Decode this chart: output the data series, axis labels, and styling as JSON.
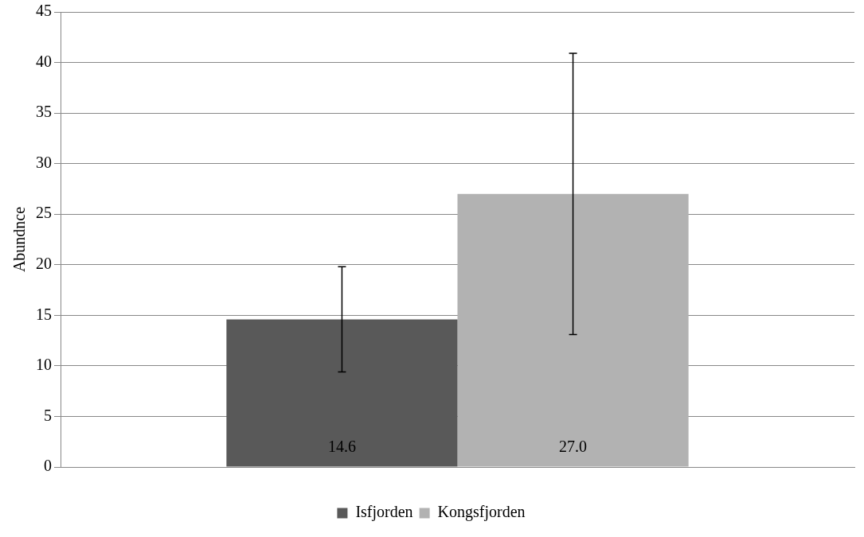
{
  "chart_data": {
    "type": "bar",
    "ylabel": "Abundnce",
    "categories": [
      null
    ],
    "series": [
      {
        "name": "Isfjorden",
        "color": "#595959",
        "values": [
          14.6
        ],
        "errors": [
          5.2
        ],
        "value_labels": [
          "14.6"
        ]
      },
      {
        "name": "Kongsfjorden",
        "color": "#b2b2b2",
        "values": [
          27.0
        ],
        "errors": [
          13.9
        ],
        "value_labels": [
          "27.0"
        ]
      }
    ],
    "ylim": [
      0,
      45
    ],
    "yticks": [
      0,
      5,
      10,
      15,
      20,
      25,
      30,
      35,
      40,
      45
    ],
    "grid": "y",
    "legend": "bottom"
  }
}
